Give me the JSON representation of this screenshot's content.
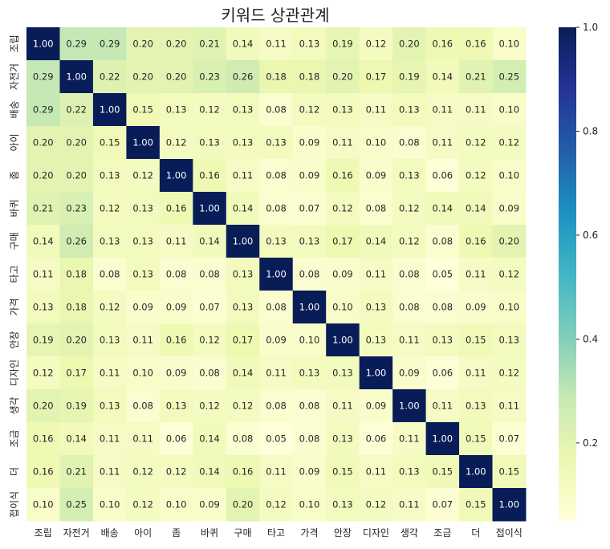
{
  "chart_data": {
    "type": "heatmap",
    "title": "키워드 상관관계",
    "xlabel": "",
    "ylabel": "",
    "categories": [
      "조립",
      "자전거",
      "배송",
      "아이",
      "좀",
      "바퀴",
      "구매",
      "타고",
      "가격",
      "안장",
      "디자인",
      "생각",
      "조금",
      "더",
      "접이식"
    ],
    "matrix": [
      [
        1.0,
        0.29,
        0.29,
        0.2,
        0.2,
        0.21,
        0.14,
        0.11,
        0.13,
        0.19,
        0.12,
        0.2,
        0.16,
        0.16,
        0.1
      ],
      [
        0.29,
        1.0,
        0.22,
        0.2,
        0.2,
        0.23,
        0.26,
        0.18,
        0.18,
        0.2,
        0.17,
        0.19,
        0.14,
        0.21,
        0.25
      ],
      [
        0.29,
        0.22,
        1.0,
        0.15,
        0.13,
        0.12,
        0.13,
        0.08,
        0.12,
        0.13,
        0.11,
        0.13,
        0.11,
        0.11,
        0.1
      ],
      [
        0.2,
        0.2,
        0.15,
        1.0,
        0.12,
        0.13,
        0.13,
        0.13,
        0.09,
        0.11,
        0.1,
        0.08,
        0.11,
        0.12,
        0.12
      ],
      [
        0.2,
        0.2,
        0.13,
        0.12,
        1.0,
        0.16,
        0.11,
        0.08,
        0.09,
        0.16,
        0.09,
        0.13,
        0.06,
        0.12,
        0.1
      ],
      [
        0.21,
        0.23,
        0.12,
        0.13,
        0.16,
        1.0,
        0.14,
        0.08,
        0.07,
        0.12,
        0.08,
        0.12,
        0.14,
        0.14,
        0.09
      ],
      [
        0.14,
        0.26,
        0.13,
        0.13,
        0.11,
        0.14,
        1.0,
        0.13,
        0.13,
        0.17,
        0.14,
        0.12,
        0.08,
        0.16,
        0.2
      ],
      [
        0.11,
        0.18,
        0.08,
        0.13,
        0.08,
        0.08,
        0.13,
        1.0,
        0.08,
        0.09,
        0.11,
        0.08,
        0.05,
        0.11,
        0.12
      ],
      [
        0.13,
        0.18,
        0.12,
        0.09,
        0.09,
        0.07,
        0.13,
        0.08,
        1.0,
        0.1,
        0.13,
        0.08,
        0.08,
        0.09,
        0.1
      ],
      [
        0.19,
        0.2,
        0.13,
        0.11,
        0.16,
        0.12,
        0.17,
        0.09,
        0.1,
        1.0,
        0.13,
        0.11,
        0.13,
        0.15,
        0.13
      ],
      [
        0.12,
        0.17,
        0.11,
        0.1,
        0.09,
        0.08,
        0.14,
        0.11,
        0.13,
        0.13,
        1.0,
        0.09,
        0.06,
        0.11,
        0.12
      ],
      [
        0.2,
        0.19,
        0.13,
        0.08,
        0.13,
        0.12,
        0.12,
        0.08,
        0.08,
        0.11,
        0.09,
        1.0,
        0.11,
        0.13,
        0.11
      ],
      [
        0.16,
        0.14,
        0.11,
        0.11,
        0.06,
        0.14,
        0.08,
        0.05,
        0.08,
        0.13,
        0.06,
        0.11,
        1.0,
        0.15,
        0.07
      ],
      [
        0.16,
        0.21,
        0.11,
        0.12,
        0.12,
        0.14,
        0.16,
        0.11,
        0.09,
        0.15,
        0.11,
        0.13,
        0.15,
        1.0,
        0.15
      ],
      [
        0.1,
        0.25,
        0.1,
        0.12,
        0.1,
        0.09,
        0.2,
        0.12,
        0.1,
        0.13,
        0.12,
        0.11,
        0.07,
        0.15,
        1.0
      ]
    ],
    "value_format": "0.00",
    "colormap": "YlGnBu",
    "vmin": 0.05,
    "vmax": 1.0,
    "colorbar_ticks": [
      0.2,
      0.4,
      0.6,
      0.8,
      1.0
    ],
    "colorbar_tick_labels": [
      "0.2",
      "0.4",
      "0.6",
      "0.8",
      "1.0"
    ],
    "grid": false,
    "legend": "right colorbar"
  }
}
